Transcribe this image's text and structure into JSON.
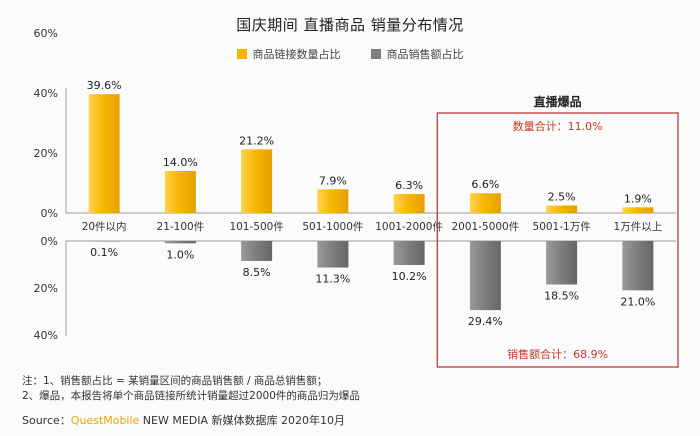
{
  "title": "国庆期间 直播商品 销量分布情况",
  "colors": {
    "accent": "#f5b400",
    "gray": "#7d7d7d",
    "highlight_border": "#b32d2d",
    "highlight_text": "#c0392b"
  },
  "chart_data": {
    "type": "bar",
    "categories": [
      "20件以内",
      "21-100件",
      "101-500件",
      "501-1000件",
      "1001-2000件",
      "2001-5000件",
      "5001-1万件",
      "1万件以上"
    ],
    "series": [
      {
        "name": "商品链接数量占比",
        "values": [
          39.6,
          14.0,
          21.2,
          7.9,
          6.3,
          6.6,
          2.5,
          1.9
        ],
        "labels": [
          "39.6%",
          "14.0%",
          "21.2%",
          "7.9%",
          "6.3%",
          "6.6%",
          "2.5%",
          "1.9%"
        ],
        "color": "#f5b400",
        "ylim": [
          0,
          60
        ],
        "ticks": [
          "0%",
          "20%",
          "40%",
          "60%"
        ]
      },
      {
        "name": "商品销售额占比",
        "values": [
          0.1,
          1.0,
          8.5,
          11.3,
          10.2,
          29.4,
          18.5,
          21.0
        ],
        "labels": [
          "0.1%",
          "1.0%",
          "8.5%",
          "11.3%",
          "10.2%",
          "29.4%",
          "18.5%",
          "21.0%"
        ],
        "color": "#7d7d7d",
        "ylim": [
          0,
          40
        ],
        "ticks": [
          "0%",
          "20%",
          "40%"
        ]
      }
    ],
    "highlight": {
      "title": "直播爆品",
      "categories": [
        "2001-5000件",
        "5001-1万件",
        "1万件以上"
      ],
      "top_text": "数量合计：11.0%",
      "bottom_text": "销售额合计：68.9%"
    }
  },
  "notes": [
    "注：1、销售额占比 = 某销量区间的商品销售额 / 商品总销售额；",
    "2、爆品，本报告将单个商品链接所统计销量超过2000件的商品归为爆品"
  ],
  "source": {
    "prefix": "Source：",
    "brand": "QuestMobile",
    "suffix": " NEW MEDIA 新媒体数据库 2020年10月"
  }
}
